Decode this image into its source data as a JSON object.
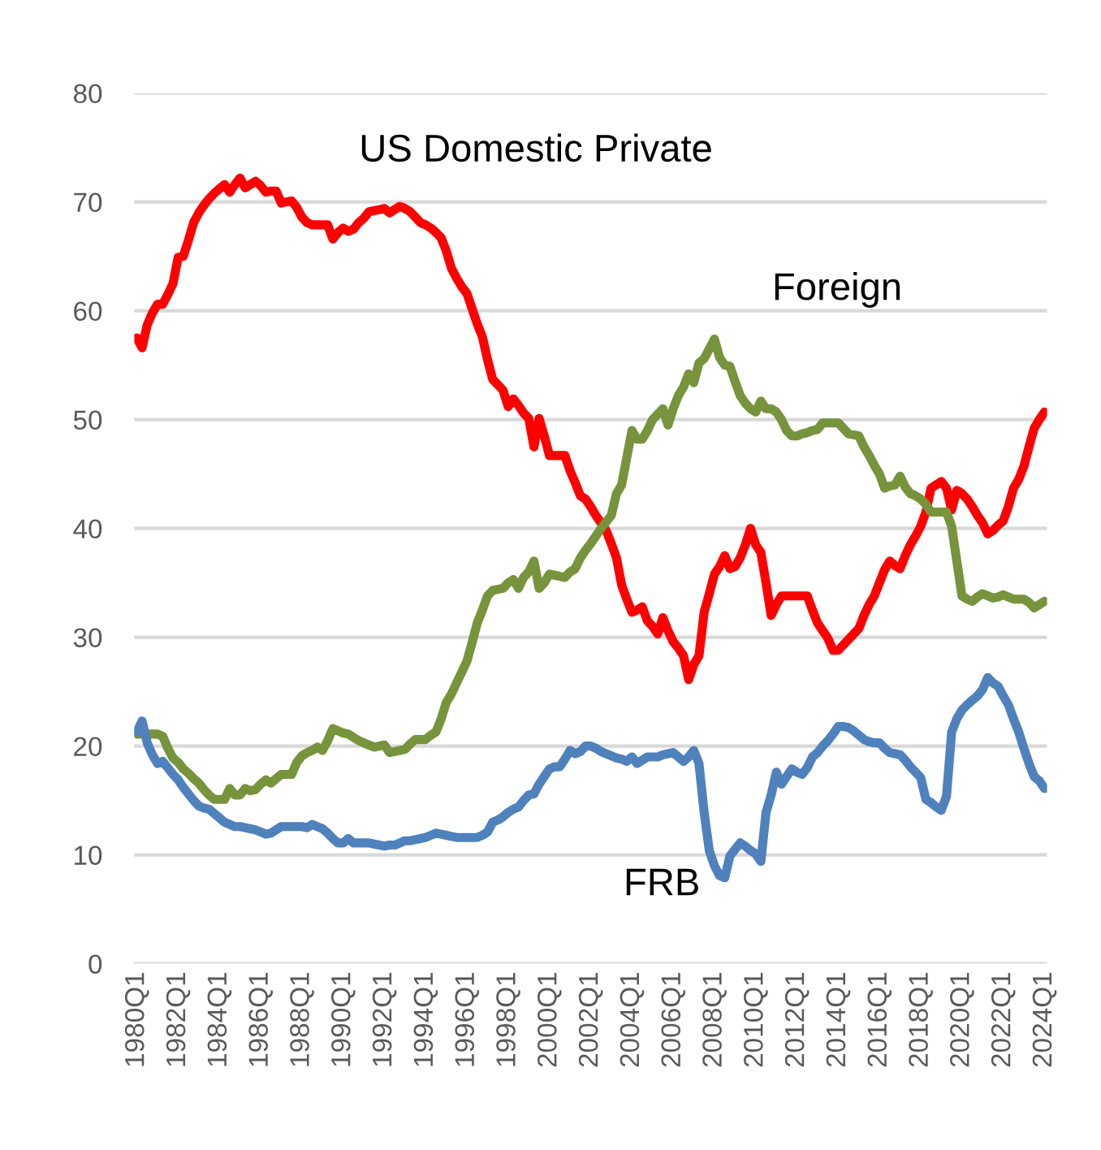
{
  "chart_data": {
    "type": "line",
    "categories": [
      "1980Q1",
      null,
      null,
      null,
      null,
      null,
      null,
      null,
      "1982Q1",
      null,
      null,
      null,
      null,
      null,
      null,
      null,
      "1984Q1",
      null,
      null,
      null,
      null,
      null,
      null,
      null,
      "1986Q1",
      null,
      null,
      null,
      null,
      null,
      null,
      null,
      "1988Q1",
      null,
      null,
      null,
      null,
      null,
      null,
      null,
      "1990Q1",
      null,
      null,
      null,
      null,
      null,
      null,
      null,
      "1992Q1",
      null,
      null,
      null,
      null,
      null,
      null,
      null,
      "1994Q1",
      null,
      null,
      null,
      null,
      null,
      null,
      null,
      "1996Q1",
      null,
      null,
      null,
      null,
      null,
      null,
      null,
      "1998Q1",
      null,
      null,
      null,
      null,
      null,
      null,
      null,
      "2000Q1",
      null,
      null,
      null,
      null,
      null,
      null,
      null,
      "2002Q1",
      null,
      null,
      null,
      null,
      null,
      null,
      null,
      "2004Q1",
      null,
      null,
      null,
      null,
      null,
      null,
      null,
      "2006Q1",
      null,
      null,
      null,
      null,
      null,
      null,
      null,
      "2008Q1",
      null,
      null,
      null,
      null,
      null,
      null,
      null,
      "2010Q1",
      null,
      null,
      null,
      null,
      null,
      null,
      null,
      "2012Q1",
      null,
      null,
      null,
      null,
      null,
      null,
      null,
      "2014Q1",
      null,
      null,
      null,
      null,
      null,
      null,
      null,
      "2016Q1",
      null,
      null,
      null,
      null,
      null,
      null,
      null,
      "2018Q1",
      null,
      null,
      null,
      null,
      null,
      null,
      null,
      "2020Q1",
      null,
      null,
      null,
      null,
      null,
      null,
      null,
      "2022Q1",
      null,
      null,
      null,
      null,
      null,
      null,
      null,
      "2024Q1"
    ],
    "ylim": [
      0,
      80
    ],
    "yticks": [
      0,
      10,
      20,
      30,
      40,
      50,
      60,
      70,
      80
    ],
    "grid": "y",
    "marker": "none",
    "line_style": "solid",
    "series": [
      {
        "color": "#ff0000",
        "values": [
          57.5,
          56.6,
          58.7,
          59.8,
          60.6,
          60.6,
          61.5,
          62.5,
          64.9,
          65.0,
          66.5,
          68.1,
          69.0,
          69.7,
          70.3,
          70.8,
          71.2,
          71.6,
          70.9,
          71.6,
          72.2,
          71.3,
          71.6,
          71.9,
          71.5,
          70.9,
          71.0,
          71.0,
          69.9,
          70.0,
          70.1,
          69.5,
          68.6,
          68.1,
          67.9,
          67.9,
          67.9,
          67.9,
          66.6,
          67.2,
          67.6,
          67.3,
          67.5,
          68.1,
          68.5,
          69.1,
          69.2,
          69.3,
          69.4,
          69.0,
          69.3,
          69.6,
          69.4,
          69.1,
          68.6,
          68.1,
          67.9,
          67.6,
          67.2,
          66.7,
          65.5,
          63.9,
          63.0,
          62.2,
          61.6,
          60.2,
          58.8,
          57.6,
          55.5,
          53.7,
          53.2,
          52.7,
          51.2,
          51.9,
          51.3,
          50.6,
          50.1,
          47.5,
          50.1,
          48.5,
          46.7,
          46.7,
          46.7,
          46.7,
          45.3,
          44.2,
          43.0,
          42.7,
          42.0,
          41.2,
          40.5,
          39.8,
          38.6,
          37.3,
          34.8,
          33.5,
          32.3,
          32.5,
          32.8,
          31.5,
          31.0,
          30.3,
          31.8,
          30.6,
          29.6,
          29.0,
          28.3,
          26.1,
          27.5,
          28.3,
          32.3,
          34.0,
          35.8,
          36.5,
          37.5,
          36.3,
          36.5,
          37.3,
          38.5,
          40.0,
          38.5,
          37.8,
          35.0,
          32.0,
          33.0,
          33.8,
          33.8,
          33.8,
          33.8,
          33.8,
          33.8,
          32.5,
          31.3,
          30.6,
          29.9,
          28.8,
          28.8,
          29.3,
          29.8,
          30.3,
          30.8,
          32.0,
          33.0,
          33.8,
          35.0,
          36.2,
          37.0,
          36.6,
          36.3,
          37.5,
          38.5,
          39.3,
          40.2,
          41.5,
          43.7,
          44.0,
          44.3,
          43.7,
          41.7,
          43.5,
          43.2,
          42.7,
          42.0,
          41.2,
          40.5,
          39.5,
          39.8,
          40.3,
          40.7,
          42.0,
          43.7,
          44.5,
          45.7,
          47.5,
          49.2,
          50.0,
          50.7
        ]
      },
      {
        "color": "#77933c",
        "values": [
          21.1,
          21.1,
          21.1,
          21.1,
          21.1,
          20.9,
          19.8,
          18.9,
          18.5,
          17.9,
          17.5,
          17.0,
          16.6,
          16.0,
          15.5,
          15.1,
          15.1,
          15.1,
          16.1,
          15.5,
          15.5,
          16.1,
          15.9,
          16.0,
          16.5,
          16.9,
          16.6,
          17.0,
          17.4,
          17.4,
          17.4,
          18.5,
          19.1,
          19.4,
          19.6,
          19.9,
          19.6,
          20.5,
          21.6,
          21.4,
          21.2,
          21.1,
          20.8,
          20.5,
          20.3,
          20.1,
          19.9,
          20.0,
          20.1,
          19.4,
          19.5,
          19.6,
          19.7,
          20.2,
          20.6,
          20.6,
          20.6,
          21.0,
          21.3,
          22.5,
          24.0,
          24.8,
          25.8,
          26.8,
          27.8,
          29.5,
          31.3,
          32.5,
          33.8,
          34.3,
          34.4,
          34.5,
          35.0,
          35.3,
          34.5,
          35.5,
          36.0,
          37.0,
          34.5,
          35.0,
          35.8,
          35.7,
          35.6,
          35.5,
          36.0,
          36.3,
          37.3,
          38.0,
          38.6,
          39.3,
          40.0,
          40.6,
          41.2,
          43.2,
          44.0,
          46.5,
          49.0,
          48.2,
          48.2,
          49.0,
          50.0,
          50.5,
          51.0,
          49.5,
          51.0,
          52.2,
          53.0,
          54.2,
          53.4,
          55.2,
          55.6,
          56.5,
          57.4,
          55.7,
          55.0,
          54.9,
          53.5,
          52.2,
          51.5,
          51.0,
          50.7,
          51.7,
          51.0,
          51.0,
          50.7,
          50.0,
          49.0,
          48.5,
          48.5,
          48.7,
          48.8,
          49.0,
          49.1,
          49.7,
          49.7,
          49.7,
          49.7,
          49.2,
          48.7,
          48.6,
          48.5,
          47.5,
          46.7,
          45.8,
          45.0,
          43.7,
          43.9,
          44.0,
          44.8,
          43.8,
          43.2,
          43.0,
          42.7,
          42.2,
          41.5,
          41.5,
          41.5,
          41.5,
          40.2,
          37.0,
          33.8,
          33.5,
          33.3,
          33.7,
          34.0,
          33.8,
          33.6,
          33.7,
          33.9,
          33.7,
          33.5,
          33.5,
          33.5,
          33.2,
          32.7,
          33.0,
          33.3
        ]
      },
      {
        "color": "#4f81bd",
        "values": [
          21.3,
          22.3,
          20.3,
          19.2,
          18.4,
          18.6,
          18.0,
          17.4,
          16.9,
          16.2,
          15.6,
          15.0,
          14.5,
          14.3,
          14.2,
          13.8,
          13.4,
          13.0,
          12.8,
          12.6,
          12.6,
          12.5,
          12.4,
          12.3,
          12.1,
          11.9,
          12.0,
          12.3,
          12.6,
          12.6,
          12.6,
          12.6,
          12.6,
          12.5,
          12.8,
          12.6,
          12.4,
          12.0,
          11.5,
          11.1,
          11.1,
          11.5,
          11.1,
          11.1,
          11.1,
          11.1,
          11.0,
          10.9,
          10.8,
          10.9,
          10.9,
          11.1,
          11.3,
          11.3,
          11.4,
          11.5,
          11.6,
          11.8,
          12.0,
          11.9,
          11.8,
          11.7,
          11.6,
          11.6,
          11.6,
          11.6,
          11.6,
          11.8,
          12.1,
          13.0,
          13.2,
          13.5,
          13.9,
          14.2,
          14.4,
          15.0,
          15.5,
          15.6,
          16.5,
          17.2,
          17.9,
          18.1,
          18.1,
          18.8,
          19.6,
          19.3,
          19.5,
          20.0,
          20.0,
          19.8,
          19.5,
          19.3,
          19.1,
          18.9,
          18.8,
          18.6,
          19.0,
          18.4,
          18.7,
          19.0,
          19.0,
          19.0,
          19.2,
          19.3,
          19.4,
          19.0,
          18.6,
          19.0,
          19.6,
          18.4,
          13.9,
          10.4,
          9.0,
          8.1,
          7.9,
          9.9,
          10.5,
          11.1,
          10.8,
          10.4,
          10.1,
          9.4,
          13.9,
          15.5,
          17.6,
          16.5,
          17.2,
          17.9,
          17.6,
          17.4,
          18.0,
          19.0,
          19.4,
          20.0,
          20.5,
          21.1,
          21.8,
          21.8,
          21.7,
          21.4,
          21.0,
          20.6,
          20.4,
          20.3,
          20.3,
          19.8,
          19.4,
          19.3,
          19.2,
          18.7,
          18.1,
          17.6,
          17.1,
          15.1,
          14.8,
          14.4,
          14.1,
          15.4,
          21.3,
          22.5,
          23.3,
          23.8,
          24.2,
          24.6,
          25.2,
          26.3,
          25.8,
          25.5,
          24.6,
          23.8,
          22.5,
          21.3,
          19.8,
          18.4,
          17.2,
          16.8,
          16.1
        ]
      }
    ],
    "annotations": [
      "US Domestic Private",
      "Foreign",
      "FRB"
    ]
  }
}
